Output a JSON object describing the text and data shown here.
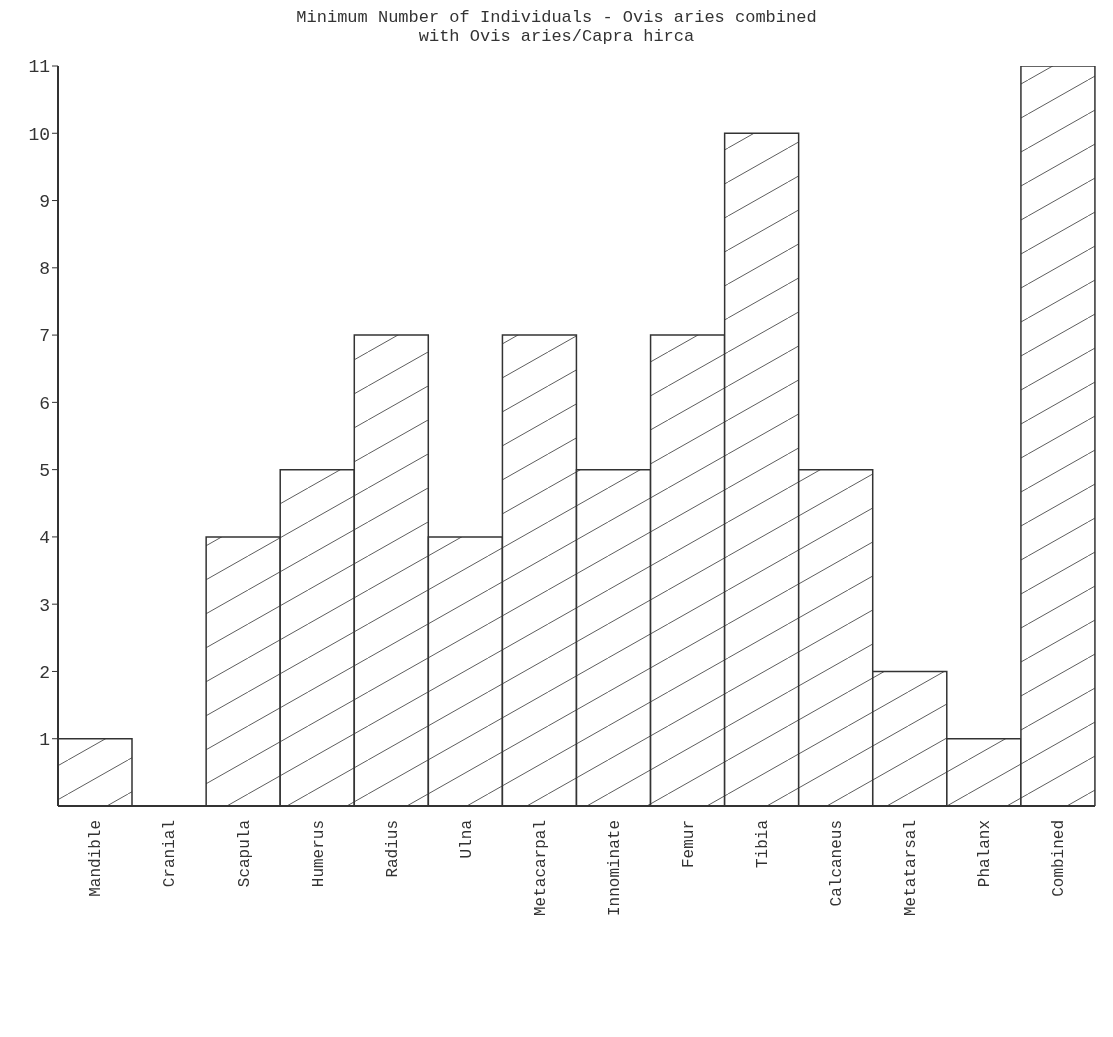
{
  "chart_data": {
    "type": "bar",
    "title": "Minimum Number of Individuals - Ovis aries combined with Ovis aries/Capra hirca",
    "categories": [
      "Mandible",
      "Cranial",
      "Scapula",
      "Humerus",
      "Radius",
      "Ulna",
      "Metacarpal",
      "Innominate",
      "Femur",
      "Tibia",
      "Calcaneus",
      "Metatarsal",
      "Phalanx",
      "Combined"
    ],
    "values": [
      1,
      0,
      4,
      5,
      7,
      4,
      7,
      5,
      7,
      10,
      5,
      2,
      1,
      11
    ],
    "color": "#333333",
    "ylim": [
      0,
      11
    ],
    "yticks": [
      1,
      2,
      3,
      4,
      5,
      6,
      7,
      8,
      9,
      10,
      11
    ],
    "grid": false
  }
}
